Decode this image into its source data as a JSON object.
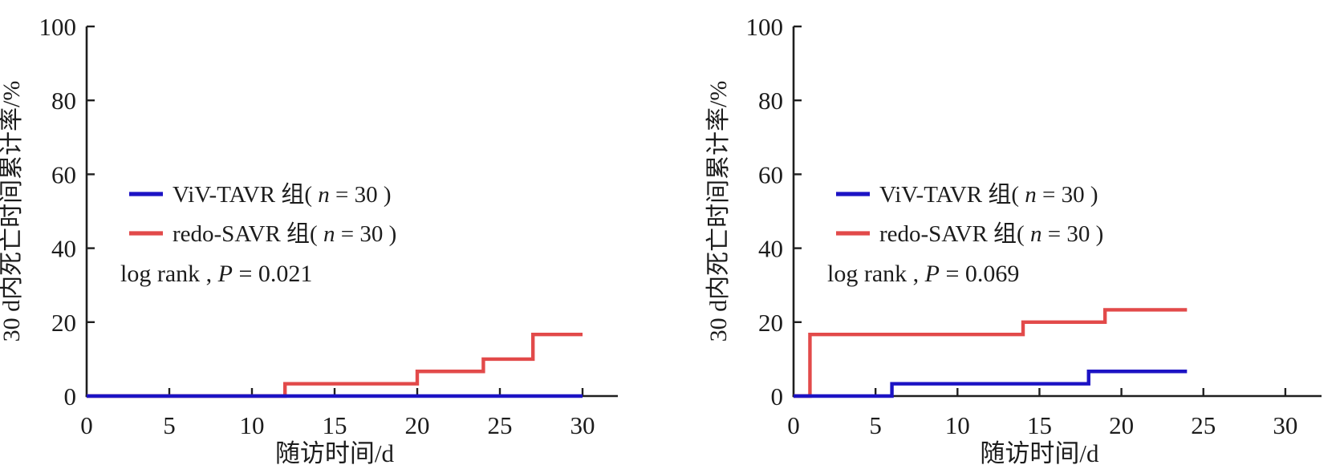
{
  "figure": {
    "background": "#ffffff",
    "axis_color": "#1f1f1f",
    "text_color": "#1c1c1c"
  },
  "chart_data": [
    {
      "type": "line",
      "variant": "kaplan-meier-step",
      "panel": "left",
      "xlabel": "随访时间/d",
      "ylabel": "30 d内死亡时间累计率/%",
      "xlim": [
        0,
        32
      ],
      "ylim": [
        0,
        100
      ],
      "xticks": [
        0,
        5,
        10,
        15,
        20,
        25,
        30
      ],
      "yticks": [
        0,
        20,
        40,
        60,
        80,
        100
      ],
      "grid": false,
      "legend_position": "inside-middle-left",
      "annotation_parts": [
        "log rank , ",
        "P",
        " = 0.021"
      ],
      "series": [
        {
          "name_parts": [
            "ViV-TAVR 组( ",
            "n",
            " = 30 )"
          ],
          "color": "#1c13c4",
          "x_start": 0,
          "x_end": 30,
          "steps": []
        },
        {
          "name_parts": [
            "redo-SAVR 组( ",
            "n",
            " = 30 )"
          ],
          "color": "#e24a4a",
          "x_start": 0,
          "x_end": 30,
          "steps": [
            [
              12,
              3.33
            ],
            [
              20,
              6.67
            ],
            [
              24,
              10.0
            ],
            [
              27,
              16.67
            ]
          ]
        }
      ]
    },
    {
      "type": "line",
      "variant": "kaplan-meier-step",
      "panel": "right",
      "xlabel": "随访时间/d",
      "ylabel": "30 d内死亡时间累计率/%",
      "xlim": [
        0,
        32
      ],
      "ylim": [
        0,
        100
      ],
      "xticks": [
        0,
        5,
        10,
        15,
        20,
        25,
        30
      ],
      "yticks": [
        0,
        20,
        40,
        60,
        80,
        100
      ],
      "grid": false,
      "legend_position": "inside-middle-left",
      "annotation_parts": [
        "log rank , ",
        "P",
        " = 0.069"
      ],
      "series": [
        {
          "name_parts": [
            "ViV-TAVR 组( ",
            "n",
            " = 30 )"
          ],
          "color": "#1c13c4",
          "x_start": 0,
          "x_end": 24,
          "steps": [
            [
              6,
              3.33
            ],
            [
              18,
              6.67
            ]
          ]
        },
        {
          "name_parts": [
            "redo-SAVR 组( ",
            "n",
            " = 30 )"
          ],
          "color": "#e24a4a",
          "x_start": 0,
          "x_end": 24,
          "steps": [
            [
              1,
              16.67
            ],
            [
              14,
              20.0
            ],
            [
              19,
              23.33
            ]
          ]
        }
      ]
    }
  ]
}
